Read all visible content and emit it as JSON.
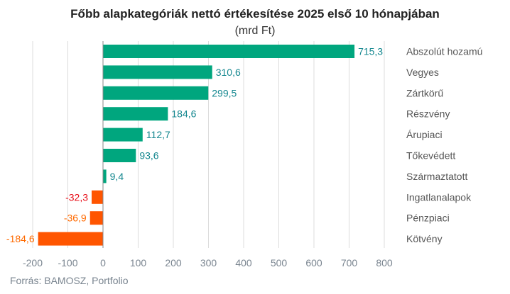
{
  "chart_data": {
    "type": "bar",
    "orientation": "horizontal",
    "title": "Főbb alapkategóriák nettó értékesítése 2025 első 10 hónapjában",
    "subtitle": "(mrd Ft)",
    "categories": [
      "Abszolút hozamú",
      "Vegyes",
      "Zártkörű",
      "Részvény",
      "Árupiaci",
      "Tőkevédett",
      "Származtatott",
      "Ingatlanalapok",
      "Pénzpiaci",
      "Kötvény"
    ],
    "values": [
      715.3,
      310.6,
      299.5,
      184.6,
      112.7,
      93.6,
      9.4,
      -32.3,
      -36.9,
      -184.6
    ],
    "data_labels": [
      "715,3",
      "310,6",
      "299,5",
      "184,6",
      "112,7",
      "93,6",
      "9,4",
      "-32,3",
      "-36,9",
      "-184,6"
    ],
    "xlim": [
      -200,
      800
    ],
    "xticks": [
      "-200",
      "-100",
      "0",
      "100",
      "200",
      "300",
      "400",
      "500",
      "600",
      "700",
      "800"
    ],
    "grid": true,
    "colors": {
      "positive": "#00a67e",
      "negative": "#ff5500",
      "positive_label": "#14878f",
      "negative_label": "#ff6a00",
      "negative_label_alt": "#e8101a"
    },
    "source": "Forrás: BAMOSZ, Portfolio"
  }
}
